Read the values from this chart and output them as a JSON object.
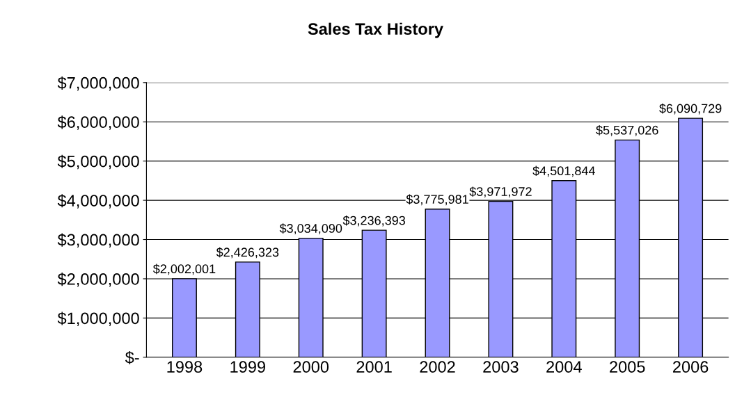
{
  "chart_data": {
    "type": "bar",
    "title": "Sales Tax History",
    "categories": [
      "1998",
      "1999",
      "2000",
      "2001",
      "2002",
      "2003",
      "2004",
      "2005",
      "2006"
    ],
    "values": [
      2002001,
      2426323,
      3034090,
      3236393,
      3775981,
      3971972,
      4501844,
      5537026,
      6090729
    ],
    "value_labels": [
      "$2,002,001",
      "$2,426,323",
      "$3,034,090",
      "$3,236,393",
      "$3,775,981",
      "$3,971,972",
      "$4,501,844",
      "$5,537,026",
      "$6,090,729"
    ],
    "color": "#9999ff",
    "ylim": [
      0,
      7000000
    ],
    "yticks": [
      {
        "value": 0,
        "label": "$-"
      },
      {
        "value": 1000000,
        "label": "$1,000,000"
      },
      {
        "value": 2000000,
        "label": "$2,000,000"
      },
      {
        "value": 3000000,
        "label": "$3,000,000"
      },
      {
        "value": 4000000,
        "label": "$4,000,000"
      },
      {
        "value": 5000000,
        "label": "$5,000,000"
      },
      {
        "value": 6000000,
        "label": "$6,000,000"
      },
      {
        "value": 7000000,
        "label": "$7,000,000"
      }
    ],
    "grid": "y"
  }
}
